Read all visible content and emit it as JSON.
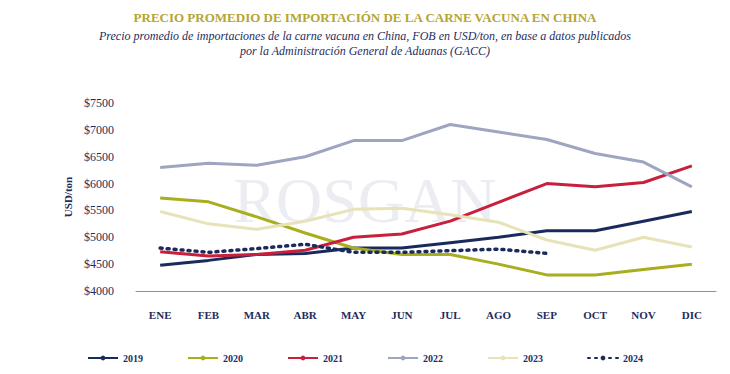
{
  "chart_data": {
    "type": "line",
    "title": "PRECIO PROMEDIO DE IMPORTACIÓN DE LA CARNE VACUNA EN CHINA",
    "subtitle": "Precio promedio de importaciones de la carne vacuna en China, FOB en USD/ton, en base a datos publicados\npor la Administración General de Aduanas (GACC)",
    "y_label": "USD/ton",
    "annotations": [
      "ROSGAN"
    ],
    "categories": [
      "ENE",
      "FEB",
      "MAR",
      "ABR",
      "MAY",
      "JUN",
      "JUL",
      "AGO",
      "SEP",
      "OCT",
      "NOV",
      "DIC"
    ],
    "series": [
      {
        "name": "2019",
        "color": "#1b2a5c",
        "line_style": "solid",
        "values": [
          4480,
          4570,
          4680,
          4700,
          4800,
          4800,
          4900,
          5000,
          5120,
          5120,
          5300,
          5480
        ]
      },
      {
        "name": "2020",
        "color": "#a9ae1e",
        "line_style": "solid",
        "values": [
          5730,
          5660,
          5380,
          5080,
          4800,
          4680,
          4680,
          4500,
          4300,
          4300,
          4400,
          4500
        ]
      },
      {
        "name": "2021",
        "color": "#c81f3c",
        "line_style": "solid",
        "values": [
          4730,
          4650,
          4680,
          4760,
          5000,
          5060,
          5300,
          5650,
          6000,
          5940,
          6020,
          6330
        ]
      },
      {
        "name": "2022",
        "color": "#9ea5c0",
        "line_style": "solid",
        "values": [
          6300,
          6380,
          6340,
          6500,
          6800,
          6800,
          7100,
          6960,
          6820,
          6560,
          6400,
          5940
        ]
      },
      {
        "name": "2023",
        "color": "#e6e3b8",
        "line_style": "solid",
        "values": [
          5480,
          5250,
          5150,
          5300,
          5520,
          5540,
          5420,
          5280,
          4950,
          4760,
          5000,
          4820
        ]
      },
      {
        "name": "2024",
        "color": "#1b2a5c",
        "line_style": "dotted",
        "values": [
          4800,
          4720,
          4790,
          4870,
          4720,
          4720,
          4750,
          4780,
          4700,
          null,
          null,
          null
        ]
      }
    ],
    "ylim": [
      4000,
      7500
    ],
    "yticks": [
      {
        "value": 4000,
        "label": "$4000"
      },
      {
        "value": 4500,
        "label": "$4500"
      },
      {
        "value": 5000,
        "label": "$5000"
      },
      {
        "value": 5500,
        "label": "$5500"
      },
      {
        "value": 6000,
        "label": "$6000"
      },
      {
        "value": 6500,
        "label": "$6500"
      },
      {
        "value": 7000,
        "label": "$7000"
      },
      {
        "value": 7500,
        "label": "$7500"
      }
    ],
    "grid": false,
    "legend": "bottom"
  }
}
